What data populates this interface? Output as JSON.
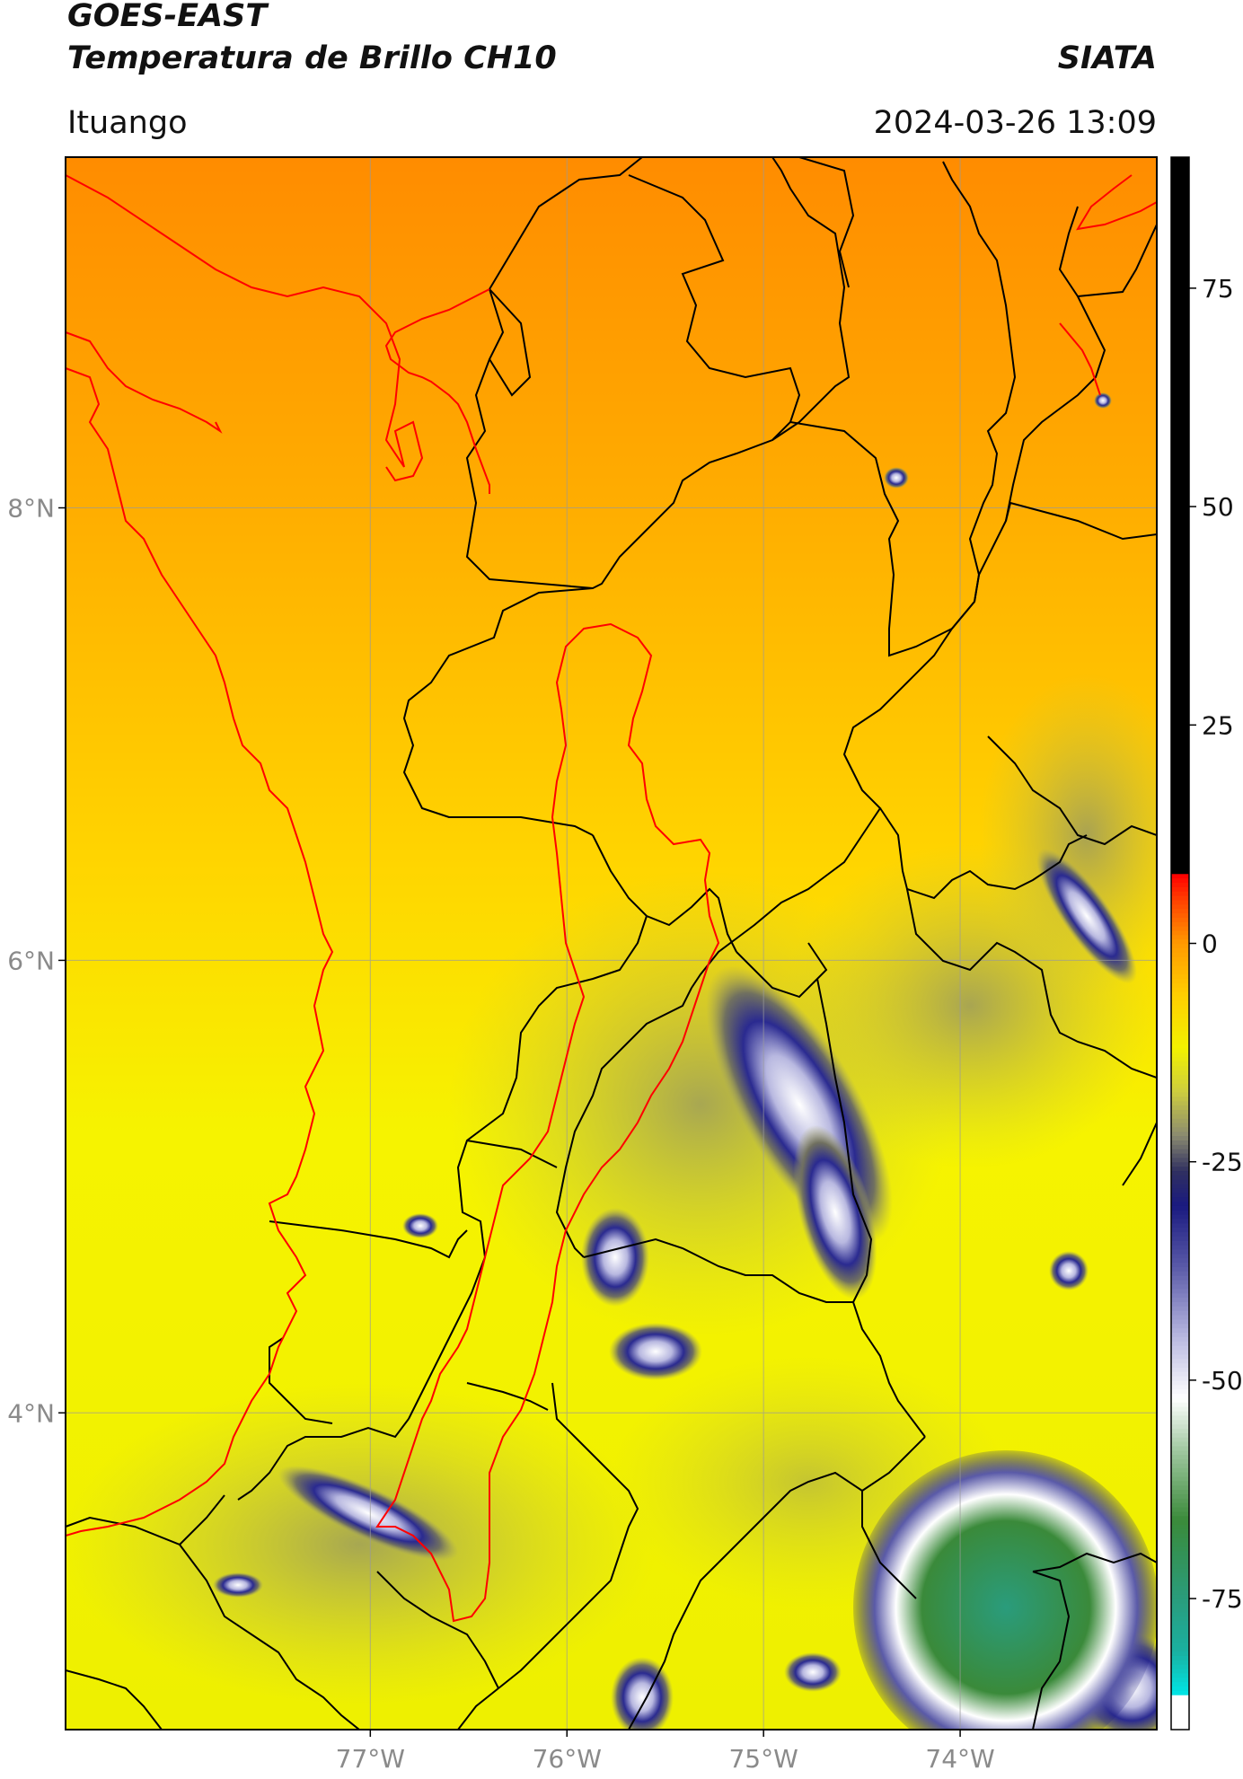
{
  "header": {
    "satellite": "GOES-EAST",
    "product": "Temperatura de Brillo CH10",
    "agency": "SIATA",
    "region": "Ituango",
    "datetime": "2024-03-26 13:09"
  },
  "map": {
    "lon_range": [
      -78.55,
      -73.0
    ],
    "lat_range": [
      2.6,
      9.55
    ],
    "lon_ticks": [
      {
        "value": -77,
        "label": "77°W"
      },
      {
        "value": -76,
        "label": "76°W"
      },
      {
        "value": -75,
        "label": "75°W"
      },
      {
        "value": -74,
        "label": "74°W"
      }
    ],
    "lat_ticks": [
      {
        "value": 8,
        "label": "8°N"
      },
      {
        "value": 6,
        "label": "6°N"
      },
      {
        "value": 4,
        "label": "4°N"
      }
    ],
    "gridlines": true,
    "background_gradient": [
      "#ff8c00",
      "#ffad00",
      "#ffd500",
      "#f6f300",
      "#eef000"
    ],
    "coastline_color": "#ff0000",
    "border_color": "#000000",
    "basin_color": "#ff0000"
  },
  "colorbar": {
    "vmin": -90,
    "vmax": 90,
    "ticks": [
      {
        "value": 75,
        "label": "75"
      },
      {
        "value": 50,
        "label": "50"
      },
      {
        "value": 25,
        "label": "25"
      },
      {
        "value": 0,
        "label": "0"
      },
      {
        "value": -25,
        "label": "-25"
      },
      {
        "value": -50,
        "label": "-50"
      },
      {
        "value": -75,
        "label": "-75"
      }
    ],
    "stops": [
      {
        "v": -90,
        "color": "#ffffff"
      },
      {
        "v": -86,
        "color": "#ffffff"
      },
      {
        "v": -85.9,
        "color": "#00e5e5"
      },
      {
        "v": -81,
        "color": "#1ab0a0"
      },
      {
        "v": -75,
        "color": "#2a9c7c"
      },
      {
        "v": -66,
        "color": "#3a8a3a"
      },
      {
        "v": -58,
        "color": "#a0c8a0"
      },
      {
        "v": -52,
        "color": "#ffffff"
      },
      {
        "v": -45,
        "color": "#b8b8e0"
      },
      {
        "v": -37,
        "color": "#5a5aa8"
      },
      {
        "v": -30,
        "color": "#1a1a80"
      },
      {
        "v": -26,
        "color": "#303060"
      },
      {
        "v": -22,
        "color": "#8a8a70"
      },
      {
        "v": -17,
        "color": "#cccc40"
      },
      {
        "v": -12,
        "color": "#f2f200"
      },
      {
        "v": -6,
        "color": "#ffd000"
      },
      {
        "v": 0,
        "color": "#ff9a00"
      },
      {
        "v": 5,
        "color": "#ff4000"
      },
      {
        "v": 7.9,
        "color": "#ff0000"
      },
      {
        "v": 8,
        "color": "#000000"
      },
      {
        "v": 90,
        "color": "#000000"
      }
    ]
  }
}
